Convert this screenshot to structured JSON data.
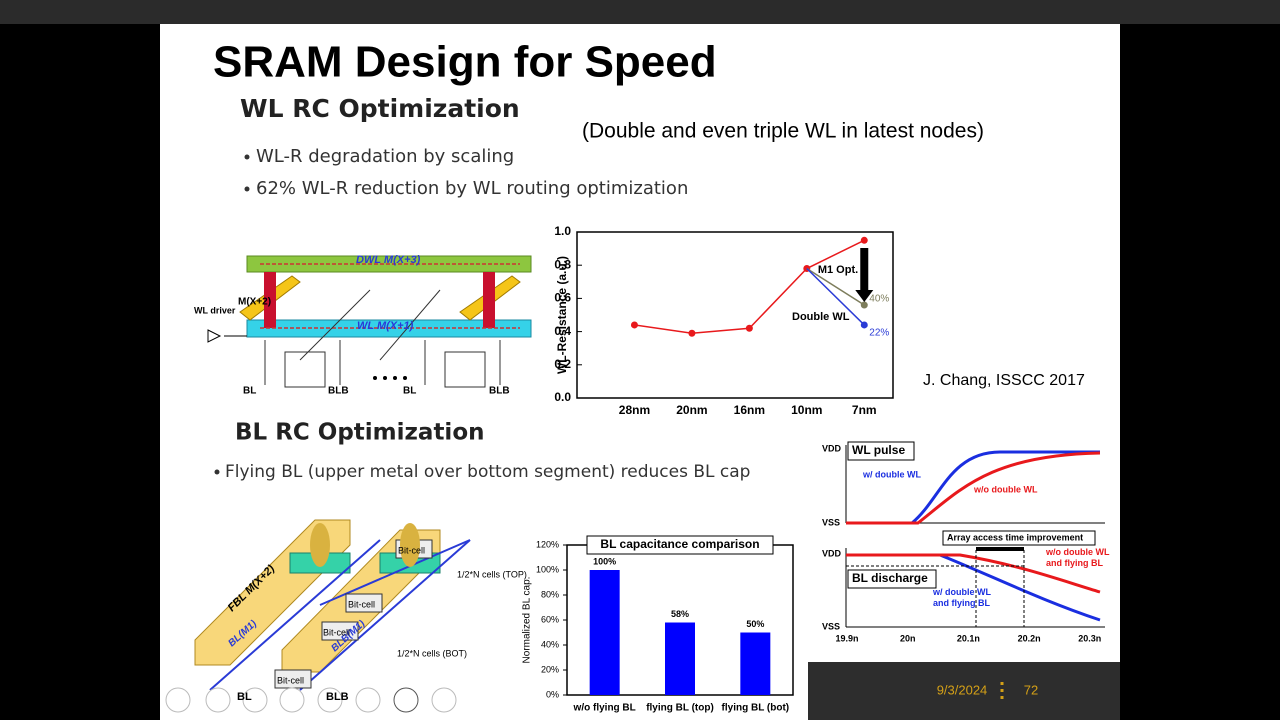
{
  "slide": {
    "title": "SRAM Design for Speed",
    "section1": "WL RC Optimization",
    "note": "(Double and even triple WL in latest nodes)",
    "bullets1": [
      "WL-R degradation by scaling",
      "62% WL-R reduction by WL routing optimization"
    ],
    "citation": "J. Chang, ISSCC 2017",
    "section2": "BL RC Optimization",
    "bullets2": [
      "Flying BL (upper metal over bottom segment) reduces BL cap"
    ]
  },
  "diagram_top": {
    "labels": [
      "DWL M(X+3)",
      "M(X+2)",
      "WL M(X+1)",
      "WL driver",
      "BL",
      "BLB",
      "BL",
      "BLB"
    ]
  },
  "diagram_bottom": {
    "labels": [
      "FBL M(X+2)",
      "BL(M1)",
      "BLB(M1)",
      "Bit-cell",
      "Bit-cell",
      "Bit-cell",
      "Bit-cell",
      "1/2*N cells (TOP)",
      "1/2*N cells (BOT)",
      "BL",
      "BLB"
    ]
  },
  "waveform": {
    "levels": [
      "VDD",
      "VSS",
      "VDD",
      "VSS"
    ],
    "titles": [
      "WL pulse",
      "BL discharge"
    ],
    "curve_labels": [
      "w/ double WL",
      "w/o double WL",
      "Array access time improvement",
      "w/o double WL and flying BL",
      "w/ double WL and flying BL"
    ],
    "xticks": [
      "19.9n",
      "20n",
      "20.1n",
      "20.2n",
      "20.3n"
    ]
  },
  "chart_data": [
    {
      "type": "line",
      "y_label": "WL-Resistance (a.u.)",
      "categories": [
        "28nm",
        "20nm",
        "16nm",
        "10nm",
        "7nm"
      ],
      "values": [
        0.44,
        0.39,
        0.42,
        0.78,
        0.95
      ],
      "color": "#e8191c",
      "ylim": [
        0,
        1
      ],
      "yticks": [
        {
          "value": 0,
          "label": "0.0"
        },
        0.2,
        0.4,
        0.6,
        0.8,
        {
          "value": 1,
          "label": "1.0"
        }
      ],
      "branches": [
        {
          "name": "M1 Opt.",
          "label": "40%",
          "color": "#7d7d5c",
          "values": [
            null,
            null,
            null,
            0.78,
            0.56
          ]
        },
        {
          "name": "Double WL",
          "label": "22%",
          "color": "#2a3bd6",
          "values": [
            null,
            null,
            null,
            0.78,
            0.44
          ]
        }
      ]
    },
    {
      "type": "bar",
      "title": "BL capacitance comparison",
      "y_label": "Normalized BL cap.",
      "categories": [
        "w/o flying BL",
        "flying BL (top)",
        "flying BL (bot)"
      ],
      "values": [
        100,
        58,
        50
      ],
      "value_labels": [
        "100%",
        "58%",
        "50%"
      ],
      "color": "#0000ff",
      "ylim": [
        0,
        120
      ],
      "yticks": [
        {
          "value": 0,
          "label": "0%"
        },
        {
          "value": 20,
          "label": "20%"
        },
        {
          "value": 40,
          "label": "40%"
        },
        {
          "value": 60,
          "label": "60%"
        },
        {
          "value": 80,
          "label": "80%"
        },
        {
          "value": 100,
          "label": "100%"
        },
        {
          "value": 120,
          "label": "120%"
        }
      ]
    }
  ],
  "footer": {
    "date": "9/3/2024",
    "page": "72"
  }
}
